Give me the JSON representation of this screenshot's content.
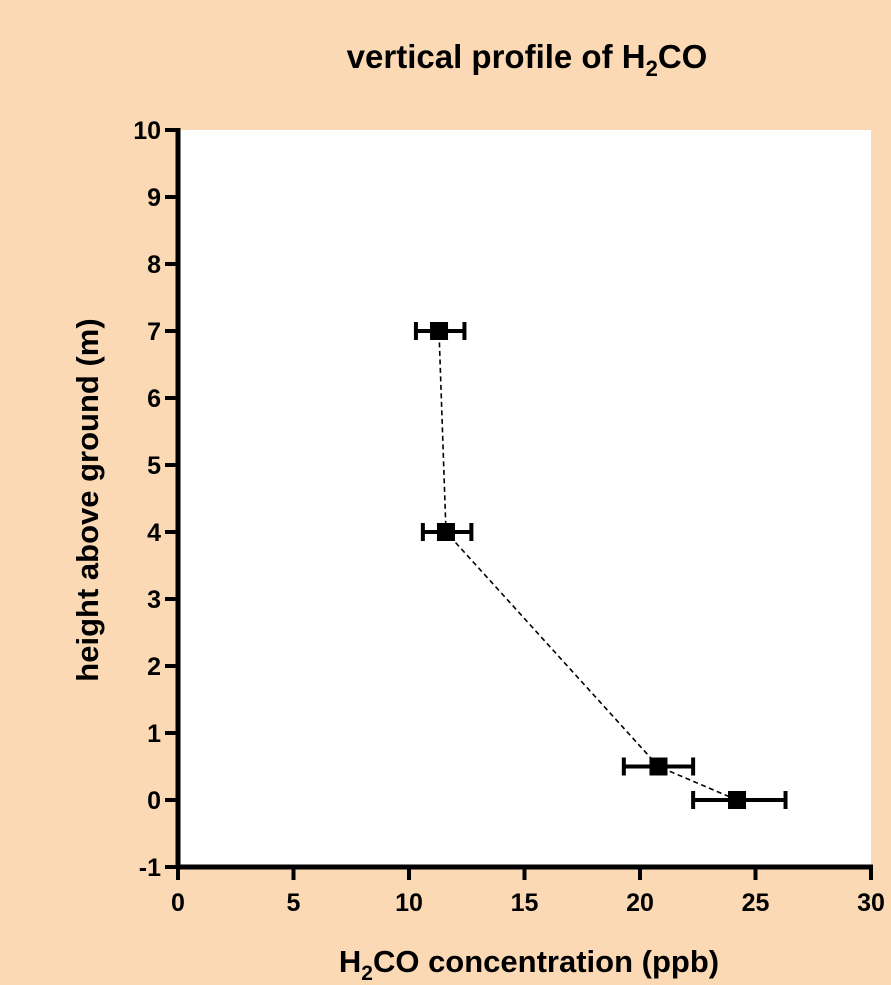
{
  "chart_data": {
    "type": "scatter",
    "title": {
      "prefix": "vertical profile of H",
      "sub": "2",
      "suffix": "CO"
    },
    "xlabel": {
      "prefix": "H",
      "sub": "2",
      "suffix": "CO concentration (ppb)"
    },
    "ylabel": "height above ground (m)",
    "xlim": [
      0,
      30
    ],
    "ylim": [
      -1,
      10
    ],
    "x_ticks": [
      0,
      5,
      10,
      15,
      20,
      25,
      30
    ],
    "y_ticks": [
      -1,
      0,
      1,
      2,
      3,
      4,
      5,
      6,
      7,
      8,
      9,
      10
    ],
    "x_tick_labels": [
      "0",
      "5",
      "10",
      "15",
      "20",
      "25",
      "30"
    ],
    "y_tick_labels": [
      "-1",
      "0",
      "1",
      "2",
      "3",
      "4",
      "5",
      "6",
      "7",
      "8",
      "9",
      "10"
    ],
    "grid": false,
    "legend": "none",
    "series": [
      {
        "points": [
          {
            "x": 24.2,
            "y": 0,
            "x_err_low": 22.3,
            "x_err_high": 26.3
          },
          {
            "x": 20.8,
            "y": 0.5,
            "x_err_low": 19.3,
            "x_err_high": 22.3
          },
          {
            "x": 11.6,
            "y": 4,
            "x_err_low": 10.6,
            "x_err_high": 12.7
          },
          {
            "x": 11.3,
            "y": 7,
            "x_err_low": 10.3,
            "x_err_high": 12.4
          }
        ],
        "line_style": "dashed",
        "marker": "square",
        "color": "#000000"
      }
    ],
    "background_color": "#fbd9b4",
    "plot_background_color": "#ffffff"
  }
}
